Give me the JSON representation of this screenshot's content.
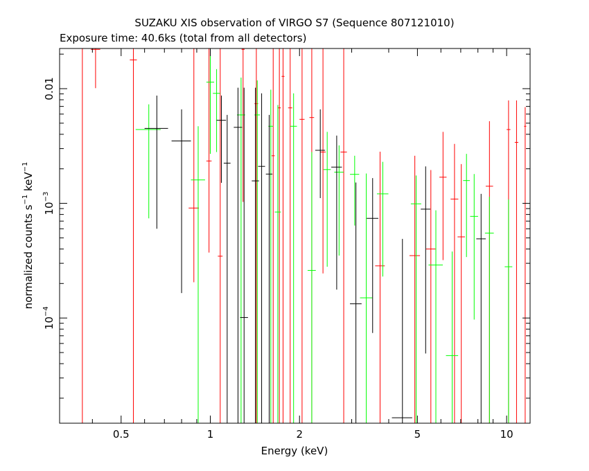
{
  "chart_data": {
    "type": "scatter",
    "title": "SUZAKU XIS observation of VIRGO S7 (Sequence 807121010)",
    "subtitle": "Exposure time: 40.6ks (total from all detectors)",
    "xlabel": "Energy (keV)",
    "ylabel": {
      "prefix": "normalized counts s",
      "exp1": "−1",
      "mid": " keV",
      "exp2": "−1"
    },
    "x_scale": "log",
    "y_scale": "log",
    "xlim": [
      0.31,
      12.0
    ],
    "ylim": [
      1.21e-05,
      0.0224
    ],
    "x_ticks": [
      {
        "value": 0.5,
        "label": "0.5"
      },
      {
        "value": 1,
        "label": "1"
      },
      {
        "value": 2,
        "label": "2"
      },
      {
        "value": 5,
        "label": "5"
      },
      {
        "value": 10,
        "label": "10"
      }
    ],
    "y_ticks": [
      {
        "value": 0.01,
        "base": "0.01",
        "exp": ""
      },
      {
        "value": 0.001,
        "base": "10",
        "exp": "−3"
      },
      {
        "value": 0.0001,
        "base": "10",
        "exp": "−4"
      }
    ],
    "grid": false,
    "series": [
      {
        "color": "#ff0000",
        "points": [
          {
            "x": 0.37,
            "xlo": 0.355,
            "xhi": 0.385,
            "y": 0.0224,
            "ylo": 1.21e-05,
            "yhi": 0.0224
          },
          {
            "x": 0.41,
            "xlo": 0.395,
            "xhi": 0.425,
            "y": 0.022,
            "ylo": 0.0101,
            "yhi": 0.0224
          },
          {
            "x": 0.55,
            "xlo": 0.535,
            "xhi": 0.565,
            "y": 0.0178,
            "ylo": 1.21e-05,
            "yhi": 0.0224
          },
          {
            "x": 0.88,
            "xlo": 0.845,
            "xhi": 0.915,
            "y": 0.00091,
            "ylo": 0.000205,
            "yhi": 0.0224
          },
          {
            "x": 0.99,
            "xlo": 0.97,
            "xhi": 1.01,
            "y": 0.00234,
            "ylo": 0.000372,
            "yhi": 0.0224
          },
          {
            "x": 1.08,
            "xlo": 1.06,
            "xhi": 1.1,
            "y": 0.000346,
            "ylo": 1.21e-05,
            "yhi": 0.0224
          },
          {
            "x": 1.29,
            "xlo": 1.275,
            "xhi": 1.305,
            "y": 0.022,
            "ylo": 0.00103,
            "yhi": 0.0224
          },
          {
            "x": 1.43,
            "xlo": 1.41,
            "xhi": 1.45,
            "y": 0.0074,
            "ylo": 1.21e-05,
            "yhi": 0.0224
          },
          {
            "x": 1.63,
            "xlo": 1.61,
            "xhi": 1.65,
            "y": 0.0026,
            "ylo": 1.21e-05,
            "yhi": 0.0224
          },
          {
            "x": 1.71,
            "xlo": 1.69,
            "xhi": 1.73,
            "y": 0.0068,
            "ylo": 1.21e-05,
            "yhi": 0.0224
          },
          {
            "x": 1.76,
            "xlo": 1.74,
            "xhi": 1.78,
            "y": 0.0128,
            "ylo": 1.21e-05,
            "yhi": 0.0224
          },
          {
            "x": 1.86,
            "xlo": 1.83,
            "xhi": 1.89,
            "y": 0.0068,
            "ylo": 1.21e-05,
            "yhi": 0.0224
          },
          {
            "x": 2.04,
            "xlo": 2.0,
            "xhi": 2.08,
            "y": 0.0054,
            "ylo": 1.21e-05,
            "yhi": 0.0224
          },
          {
            "x": 2.2,
            "xlo": 2.16,
            "xhi": 2.24,
            "y": 0.0056,
            "ylo": 1.21e-05,
            "yhi": 0.0224
          },
          {
            "x": 2.4,
            "xlo": 2.35,
            "xhi": 2.45,
            "y": 0.0028,
            "ylo": 0.000245,
            "yhi": 0.0224
          },
          {
            "x": 2.82,
            "xlo": 2.75,
            "xhi": 2.89,
            "y": 0.0028,
            "ylo": 1.21e-05,
            "yhi": 0.0224
          },
          {
            "x": 3.74,
            "xlo": 3.6,
            "xhi": 3.88,
            "y": 0.000285,
            "ylo": 1.21e-05,
            "yhi": 0.00282
          },
          {
            "x": 4.9,
            "xlo": 4.7,
            "xhi": 5.1,
            "y": 0.00035,
            "ylo": 1.21e-05,
            "yhi": 0.0026
          },
          {
            "x": 5.55,
            "xlo": 5.35,
            "xhi": 5.75,
            "y": 0.0004,
            "ylo": 1.21e-05,
            "yhi": 0.00195
          },
          {
            "x": 6.1,
            "xlo": 5.93,
            "xhi": 6.27,
            "y": 0.00169,
            "ylo": 0.00032,
            "yhi": 0.0042
          },
          {
            "x": 6.67,
            "xlo": 6.47,
            "xhi": 6.87,
            "y": 0.00109,
            "ylo": 1.21e-05,
            "yhi": 0.0033
          },
          {
            "x": 7.03,
            "xlo": 6.83,
            "xhi": 7.23,
            "y": 0.00051,
            "ylo": 1.21e-05,
            "yhi": 0.0022
          },
          {
            "x": 8.75,
            "xlo": 8.5,
            "xhi": 9.0,
            "y": 0.00141,
            "ylo": 1.21e-05,
            "yhi": 0.0052
          },
          {
            "x": 10.15,
            "xlo": 10.0,
            "xhi": 10.3,
            "y": 0.0044,
            "ylo": 1.21e-05,
            "yhi": 0.0079
          },
          {
            "x": 10.8,
            "xlo": 10.65,
            "xhi": 10.95,
            "y": 0.0034,
            "ylo": 1.21e-05,
            "yhi": 0.0079
          },
          {
            "x": 11.55,
            "xlo": 11.45,
            "xhi": 11.65,
            "y": 0.0047,
            "ylo": 1.21e-05,
            "yhi": 0.0069
          }
        ]
      },
      {
        "color": "#00ff00",
        "points": [
          {
            "x": 0.62,
            "xlo": 0.56,
            "xhi": 0.68,
            "y": 0.0044,
            "ylo": 0.00074,
            "yhi": 0.0073
          },
          {
            "x": 0.91,
            "xlo": 0.86,
            "xhi": 0.96,
            "y": 0.0016,
            "ylo": 1.21e-05,
            "yhi": 0.0047
          },
          {
            "x": 1.0,
            "xlo": 0.97,
            "xhi": 1.03,
            "y": 0.0114,
            "ylo": 0.0027,
            "yhi": 0.0224
          },
          {
            "x": 1.05,
            "xlo": 1.02,
            "xhi": 1.08,
            "y": 0.0091,
            "ylo": 0.0028,
            "yhi": 0.0148
          },
          {
            "x": 1.27,
            "xlo": 1.23,
            "xhi": 1.31,
            "y": 0.0059,
            "ylo": 1.21e-05,
            "yhi": 0.0125
          },
          {
            "x": 1.44,
            "xlo": 1.41,
            "xhi": 1.47,
            "y": 0.0059,
            "ylo": 1.21e-05,
            "yhi": 0.0118
          },
          {
            "x": 1.6,
            "xlo": 1.57,
            "xhi": 1.63,
            "y": 0.0047,
            "ylo": 1.21e-05,
            "yhi": 0.0098
          },
          {
            "x": 1.69,
            "xlo": 1.65,
            "xhi": 1.73,
            "y": 0.00084,
            "ylo": 1.21e-05,
            "yhi": 0.0072
          },
          {
            "x": 1.91,
            "xlo": 1.86,
            "xhi": 1.96,
            "y": 0.0047,
            "ylo": 1.21e-05,
            "yhi": 0.0091
          },
          {
            "x": 2.2,
            "xlo": 2.13,
            "xhi": 2.27,
            "y": 0.00026,
            "ylo": 1.21e-05,
            "yhi": 0.0028
          },
          {
            "x": 2.48,
            "xlo": 2.41,
            "xhi": 2.55,
            "y": 0.00197,
            "ylo": 0.00028,
            "yhi": 0.0042
          },
          {
            "x": 2.72,
            "xlo": 2.62,
            "xhi": 2.82,
            "y": 0.00187,
            "ylo": 0.00035,
            "yhi": 0.0032
          },
          {
            "x": 3.07,
            "xlo": 2.96,
            "xhi": 3.18,
            "y": 0.00179,
            "ylo": 0.00064,
            "yhi": 0.0026
          },
          {
            "x": 3.36,
            "xlo": 3.2,
            "xhi": 3.52,
            "y": 0.00015,
            "ylo": 1.21e-05,
            "yhi": 0.00182
          },
          {
            "x": 3.82,
            "xlo": 3.65,
            "xhi": 3.99,
            "y": 0.00121,
            "ylo": 0.00023,
            "yhi": 0.0023
          },
          {
            "x": 4.95,
            "xlo": 4.75,
            "xhi": 5.15,
            "y": 0.00099,
            "ylo": 1.21e-05,
            "yhi": 0.00175
          },
          {
            "x": 5.77,
            "xlo": 5.45,
            "xhi": 6.09,
            "y": 0.00029,
            "ylo": 1.21e-05,
            "yhi": 0.00087
          },
          {
            "x": 6.55,
            "xlo": 6.24,
            "xhi": 6.86,
            "y": 4.7e-05,
            "ylo": 1.21e-05,
            "yhi": 0.00038
          },
          {
            "x": 7.32,
            "xlo": 7.13,
            "xhi": 7.51,
            "y": 0.00158,
            "ylo": 0.00034,
            "yhi": 0.0027
          },
          {
            "x": 7.77,
            "xlo": 7.53,
            "xhi": 8.01,
            "y": 0.00077,
            "ylo": 9.7e-05,
            "yhi": 0.0018
          },
          {
            "x": 8.75,
            "xlo": 8.45,
            "xhi": 9.05,
            "y": 0.00055,
            "ylo": 1.21e-05,
            "yhi": 0.00114
          },
          {
            "x": 10.15,
            "xlo": 9.85,
            "xhi": 10.45,
            "y": 0.00028,
            "ylo": 1.21e-05,
            "yhi": 0.00108
          }
        ]
      },
      {
        "color": "#000000",
        "points": [
          {
            "x": 0.66,
            "xlo": 0.6,
            "xhi": 0.72,
            "y": 0.0045,
            "ylo": 0.0006,
            "yhi": 0.0087
          },
          {
            "x": 0.8,
            "xlo": 0.74,
            "xhi": 0.86,
            "y": 0.0035,
            "ylo": 0.000165,
            "yhi": 0.0066
          },
          {
            "x": 1.09,
            "xlo": 1.05,
            "xhi": 1.13,
            "y": 0.0053,
            "ylo": 0.00151,
            "yhi": 0.0087
          },
          {
            "x": 1.14,
            "xlo": 1.11,
            "xhi": 1.17,
            "y": 0.00224,
            "ylo": 1.21e-05,
            "yhi": 0.0059
          },
          {
            "x": 1.24,
            "xlo": 1.2,
            "xhi": 1.28,
            "y": 0.0046,
            "ylo": 1.21e-05,
            "yhi": 0.0102
          },
          {
            "x": 1.3,
            "xlo": 1.26,
            "xhi": 1.34,
            "y": 0.000101,
            "ylo": 1.21e-05,
            "yhi": 0.0102
          },
          {
            "x": 1.42,
            "xlo": 1.38,
            "xhi": 1.46,
            "y": 0.00157,
            "ylo": 1.21e-05,
            "yhi": 0.0102
          },
          {
            "x": 1.49,
            "xlo": 1.45,
            "xhi": 1.53,
            "y": 0.0021,
            "ylo": 1.21e-05,
            "yhi": 0.0091
          },
          {
            "x": 1.58,
            "xlo": 1.54,
            "xhi": 1.62,
            "y": 0.0018,
            "ylo": 1.21e-05,
            "yhi": 0.0059
          },
          {
            "x": 2.35,
            "xlo": 2.26,
            "xhi": 2.44,
            "y": 0.0029,
            "ylo": 0.00111,
            "yhi": 0.0066
          },
          {
            "x": 2.67,
            "xlo": 2.56,
            "xhi": 2.78,
            "y": 0.00207,
            "ylo": 0.000177,
            "yhi": 0.0039
          },
          {
            "x": 3.1,
            "xlo": 2.96,
            "xhi": 3.24,
            "y": 0.000133,
            "ylo": 1.21e-05,
            "yhi": 0.00152
          },
          {
            "x": 3.53,
            "xlo": 3.37,
            "xhi": 3.69,
            "y": 0.00074,
            "ylo": 7.4e-05,
            "yhi": 0.00166
          },
          {
            "x": 4.45,
            "xlo": 4.1,
            "xhi": 4.8,
            "y": 1.35e-05,
            "ylo": 1.21e-05,
            "yhi": 0.00049
          },
          {
            "x": 5.33,
            "xlo": 5.13,
            "xhi": 5.53,
            "y": 0.00089,
            "ylo": 4.9e-05,
            "yhi": 0.0021
          },
          {
            "x": 8.2,
            "xlo": 7.9,
            "xhi": 8.5,
            "y": 0.00049,
            "ylo": 1.21e-05,
            "yhi": 0.00121
          }
        ]
      }
    ]
  }
}
